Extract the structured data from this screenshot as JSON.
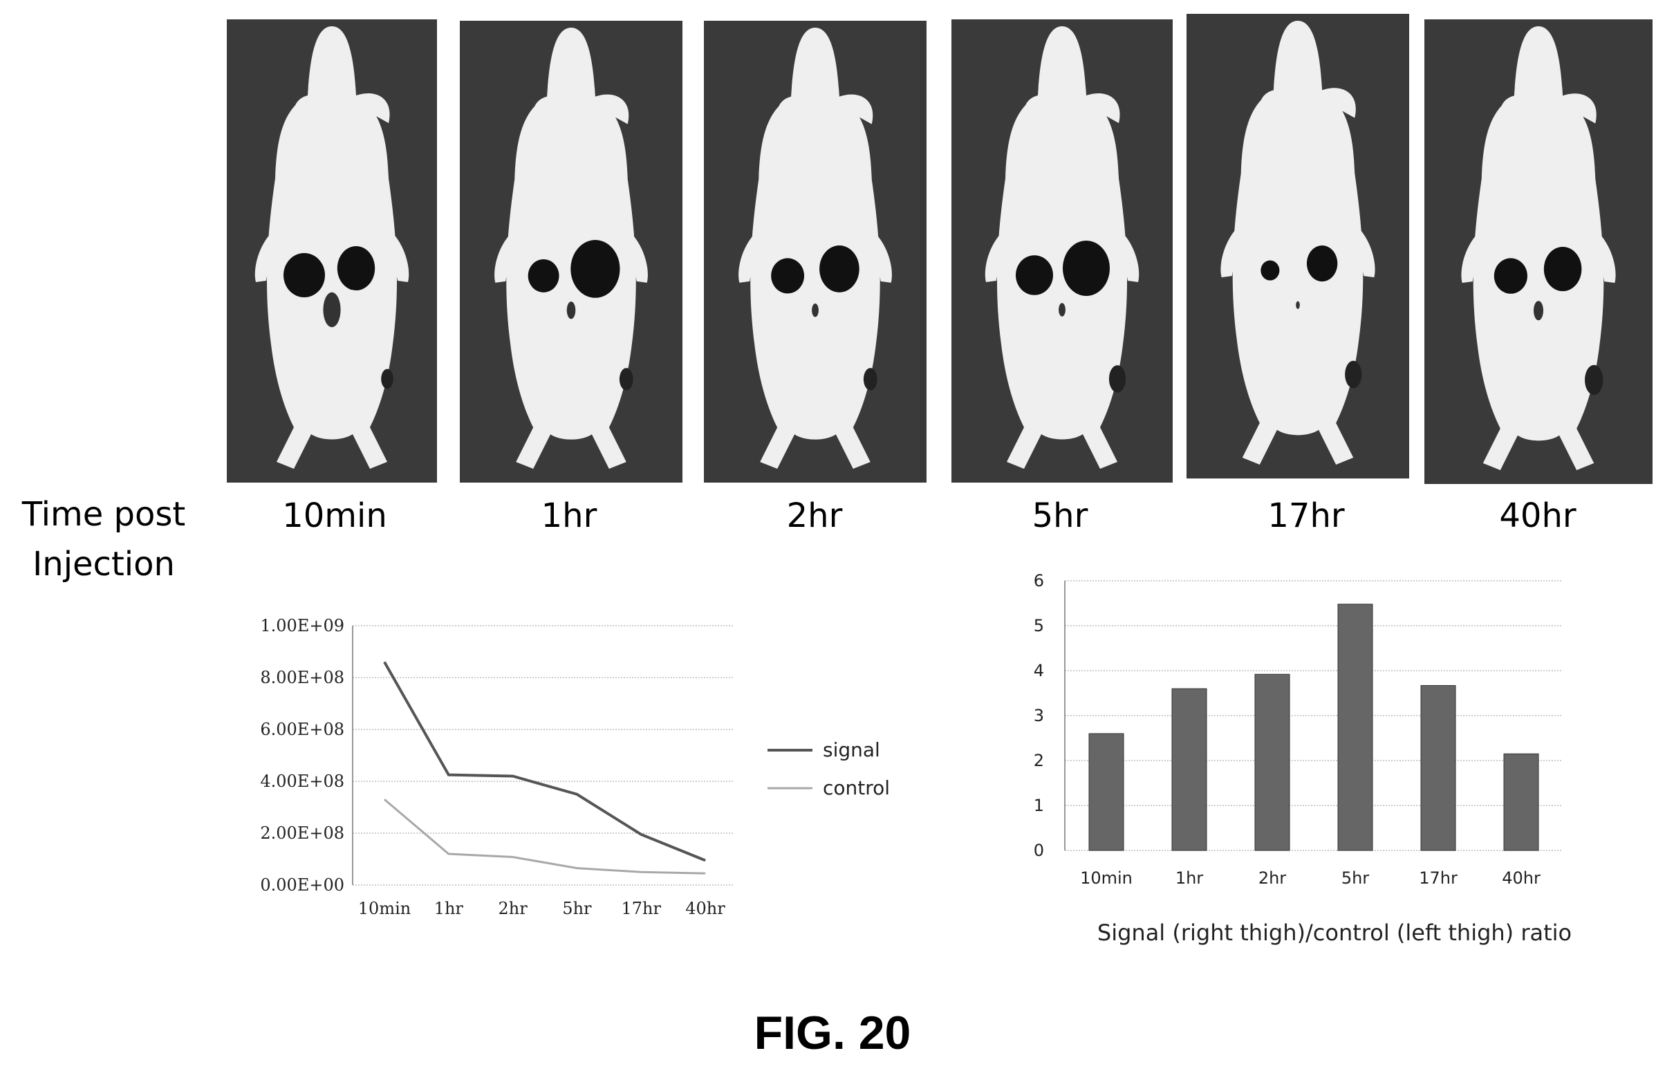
{
  "figure_label": "FIG. 20",
  "row_title": {
    "line1": "Time post",
    "line2": "Injection"
  },
  "timepoints": [
    "10min",
    "1hr",
    "2hr",
    "5hr",
    "17hr",
    "40hr"
  ],
  "chart_data": [
    {
      "type": "line",
      "title": "",
      "categories": [
        "10min",
        "1hr",
        "2hr",
        "5hr",
        "17hr",
        "40hr"
      ],
      "series": [
        {
          "name": "signal",
          "values": [
            860000000,
            425000000,
            420000000,
            350000000,
            195000000,
            95000000
          ],
          "color": "#555555"
        },
        {
          "name": "control",
          "values": [
            330000000,
            120000000,
            108000000,
            65000000,
            50000000,
            45000000
          ],
          "color": "#a8a8a8"
        }
      ],
      "yticks": [
        "0.00E+00",
        "2.00E+08",
        "4.00E+08",
        "6.00E+08",
        "8.00E+08",
        "1.00E+09"
      ],
      "ylim": [
        0,
        1000000000
      ],
      "xlabel": "",
      "ylabel": "",
      "grid": true,
      "legend": "right"
    },
    {
      "type": "bar",
      "title": "",
      "categories": [
        "10min",
        "1hr",
        "2hr",
        "5hr",
        "17hr",
        "40hr"
      ],
      "values": [
        2.6,
        3.6,
        3.92,
        5.48,
        3.67,
        2.15
      ],
      "color": "#666666",
      "yticks": [
        "0",
        "1",
        "2",
        "3",
        "4",
        "5",
        "6"
      ],
      "ylim": [
        0,
        6
      ],
      "xlabel": "Signal (right thigh)/control (left thigh) ratio",
      "ylabel": "",
      "grid": true
    }
  ]
}
